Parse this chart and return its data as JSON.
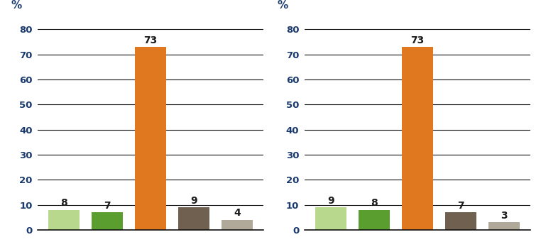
{
  "chart1": {
    "values": [
      8,
      7,
      73,
      9,
      4
    ],
    "colors": [
      "#b8d98d",
      "#5a9e2f",
      "#e07820",
      "#706050",
      "#b0a898"
    ]
  },
  "chart2": {
    "values": [
      9,
      8,
      73,
      7,
      3
    ],
    "colors": [
      "#b8d98d",
      "#5a9e2f",
      "#e07820",
      "#706050",
      "#b0a898"
    ]
  },
  "ylim": [
    0,
    84
  ],
  "yticks": [
    0,
    10,
    20,
    30,
    40,
    50,
    60,
    70,
    80
  ],
  "bar_width": 0.72,
  "label_fontsize": 10,
  "tick_fontsize": 9.5,
  "label_color": "#1a1a1a",
  "axis_color": "#1a3a6e",
  "background_color": "#ffffff",
  "label_weight": "bold",
  "percent_fontsize": 11,
  "line_color": "#111111",
  "line_width": 0.8
}
